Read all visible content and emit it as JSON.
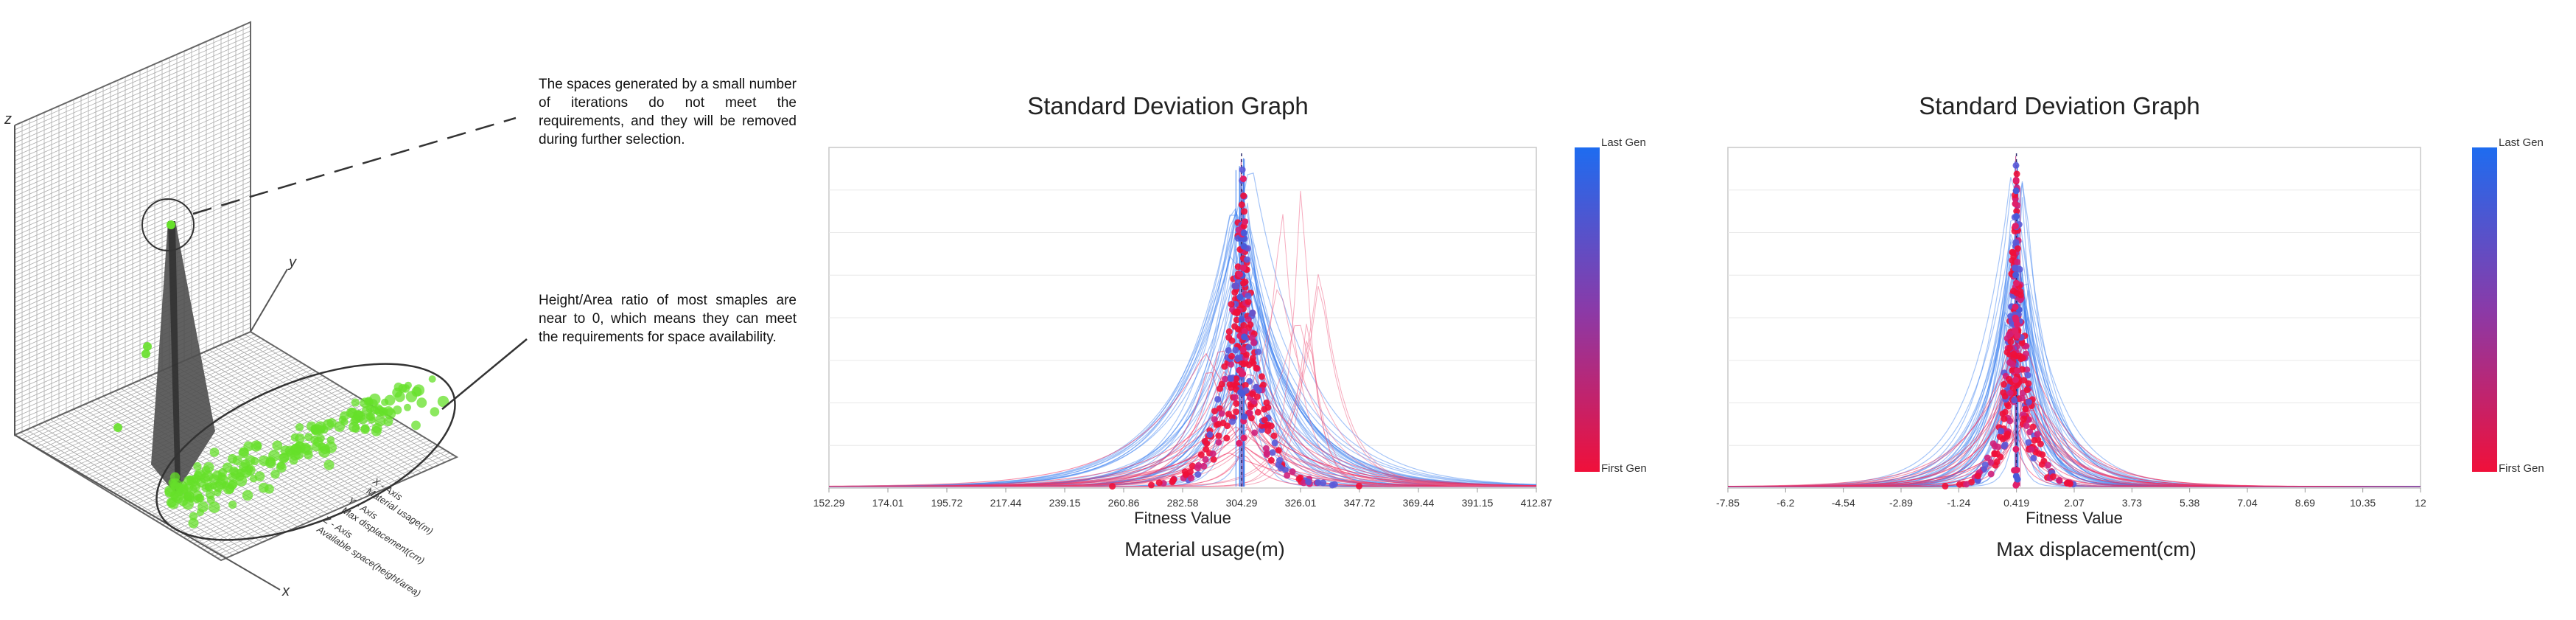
{
  "figure_3d": {
    "annotations": [
      "The spaces generated by a small number of iterations do not meet the requirements, and they will be removed during further selection.",
      "Height/Area ratio of most smaples are near to 0, which means they can meet the requirements for space availability."
    ],
    "axes_labels": {
      "z": "z",
      "y": "y",
      "x": "x",
      "x_legend": "X - Axis\nMaterial usage(m)",
      "y_legend": "Y - Axis\nMax displacement(cm)",
      "z_legend": "Z - Axis\nAvailable space(height/area)"
    },
    "colors": {
      "points": "#66e02a",
      "surface": "#4a4a4a",
      "grid": "#9a9a9a"
    }
  },
  "chart_data": [
    {
      "type": "scatter",
      "title": "Standard Deviation Graph",
      "xlabel": "Fitness Value",
      "caption": "Material usage(m)",
      "xticks": [
        "152.29",
        "174.01",
        "195.72",
        "217.44",
        "239.15",
        "260.86",
        "282.58",
        "304.29",
        "326.01",
        "347.72",
        "369.44",
        "391.15",
        "412.87"
      ],
      "xlim": [
        152.29,
        412.87
      ],
      "peak_mean": 304.29,
      "spread": 9,
      "secondary_peak": 326.01,
      "colorbar": {
        "top": "Last Gen",
        "bottom": "First Gen",
        "top_color": "#1e6cf0",
        "bottom_color": "#f0103a"
      }
    },
    {
      "type": "scatter",
      "title": "Standard Deviation Graph",
      "xlabel": "Fitness Value",
      "caption": "Max displacement(cm)",
      "xticks": [
        "-7.85",
        "-6.2",
        "-4.54",
        "-2.89",
        "-1.24",
        "0.419",
        "2.07",
        "3.73",
        "5.38",
        "7.04",
        "8.69",
        "10.35",
        "12"
      ],
      "xlim": [
        -7.85,
        12
      ],
      "peak_mean": 0.419,
      "spread": 0.45,
      "colorbar": {
        "top": "Last Gen",
        "bottom": "First Gen",
        "top_color": "#1e6cf0",
        "bottom_color": "#f0103a"
      }
    }
  ]
}
